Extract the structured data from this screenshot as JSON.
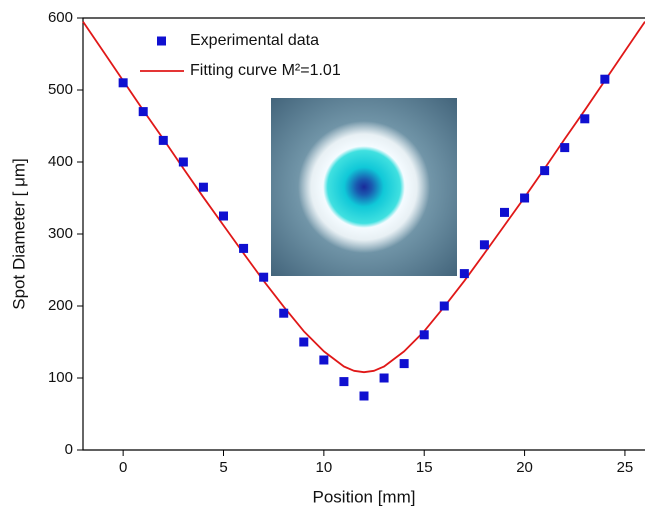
{
  "chart_data": {
    "type": "scatter",
    "xlabel": "Position [mm]",
    "ylabel": "Spot Diameter [ μm]",
    "xlim": [
      -2,
      26
    ],
    "xticks": [
      0,
      5,
      10,
      15,
      20,
      25
    ],
    "ylim": [
      0,
      600
    ],
    "yticks": [
      0,
      100,
      200,
      300,
      400,
      500,
      600
    ],
    "legend": "upper left",
    "series": [
      {
        "name": "Experimental data",
        "type": "scatter",
        "color": "#1010d0",
        "x": [
          0,
          1,
          2,
          3,
          4,
          5,
          6,
          7,
          8,
          9,
          10,
          11,
          12,
          13,
          14,
          15,
          16,
          17,
          18,
          19,
          20,
          21,
          22,
          23,
          24
        ],
        "values": [
          510,
          470,
          430,
          400,
          365,
          325,
          280,
          240,
          190,
          150,
          125,
          95,
          75,
          100,
          120,
          160,
          200,
          245,
          285,
          330,
          350,
          388,
          420,
          460,
          515
        ]
      },
      {
        "name": "Fitting curve M²=1.01",
        "type": "line",
        "color": "#e01818",
        "x": [
          -2,
          -1,
          0,
          1,
          2,
          3,
          4,
          5,
          6,
          7,
          8,
          9,
          10,
          11,
          11.5,
          12,
          12.5,
          13,
          14,
          15,
          16,
          17,
          18,
          19,
          20,
          21,
          22,
          23,
          24,
          25,
          26
        ],
        "values": [
          595,
          554,
          513,
          472,
          432,
          391,
          351,
          312,
          273,
          235,
          199,
          165,
          137,
          116,
          110,
          108,
          110,
          116,
          137,
          165,
          199,
          235,
          273,
          312,
          351,
          391,
          432,
          472,
          513,
          554,
          595
        ]
      }
    ]
  }
}
